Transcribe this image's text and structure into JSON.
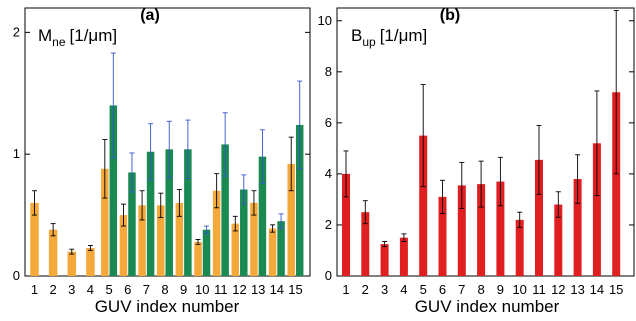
{
  "chart_data": [
    {
      "type": "bar",
      "panel_label": "(a)",
      "ylabel_main": "M",
      "ylabel_sub": "ne",
      "ylabel_unit": "[1/μm]",
      "xlabel": "GUV index number",
      "categories": [
        "1",
        "2",
        "3",
        "4",
        "5",
        "6",
        "7",
        "8",
        "9",
        "10",
        "11",
        "12",
        "13",
        "14",
        "15"
      ],
      "ylim": [
        0,
        2.2
      ],
      "yticks": [
        0,
        1,
        2
      ],
      "series": [
        {
          "color": "#f4a93a",
          "errcolor": "#000000",
          "values": [
            0.6,
            0.38,
            0.2,
            0.23,
            0.88,
            0.5,
            0.58,
            0.58,
            0.6,
            0.28,
            0.7,
            0.43,
            0.6,
            0.39,
            0.92
          ],
          "errors": [
            0.1,
            0.05,
            0.02,
            0.02,
            0.24,
            0.09,
            0.12,
            0.1,
            0.11,
            0.02,
            0.14,
            0.06,
            0.1,
            0.03,
            0.22
          ]
        },
        {
          "color": "#1a8a52",
          "errcolor": "#3355cc",
          "values": [
            null,
            null,
            null,
            null,
            1.4,
            0.85,
            1.02,
            1.04,
            1.04,
            0.38,
            1.08,
            0.71,
            0.98,
            0.45,
            1.24
          ],
          "errors": [
            null,
            null,
            null,
            null,
            0.43,
            0.16,
            0.23,
            0.23,
            0.24,
            0.03,
            0.26,
            0.12,
            0.22,
            0.06,
            0.36
          ]
        }
      ]
    },
    {
      "type": "bar",
      "panel_label": "(b)",
      "ylabel_main": "B",
      "ylabel_sub": "up",
      "ylabel_unit": "[1/μm]",
      "xlabel": "GUV index number",
      "categories": [
        "1",
        "2",
        "3",
        "4",
        "5",
        "6",
        "7",
        "8",
        "9",
        "10",
        "11",
        "12",
        "13",
        "14",
        "15"
      ],
      "ylim": [
        0,
        10.5
      ],
      "yticks": [
        0,
        2,
        4,
        6,
        8,
        10
      ],
      "series": [
        {
          "color": "#e02020",
          "errcolor": "#000000",
          "values": [
            4.0,
            2.5,
            1.25,
            1.5,
            5.5,
            3.1,
            3.55,
            3.6,
            3.7,
            2.2,
            4.55,
            2.8,
            3.8,
            5.2,
            7.2
          ],
          "errors": [
            0.9,
            0.45,
            0.1,
            0.15,
            2.0,
            0.65,
            0.9,
            0.9,
            0.95,
            0.3,
            1.35,
            0.5,
            0.95,
            2.05,
            3.2
          ]
        }
      ]
    }
  ]
}
